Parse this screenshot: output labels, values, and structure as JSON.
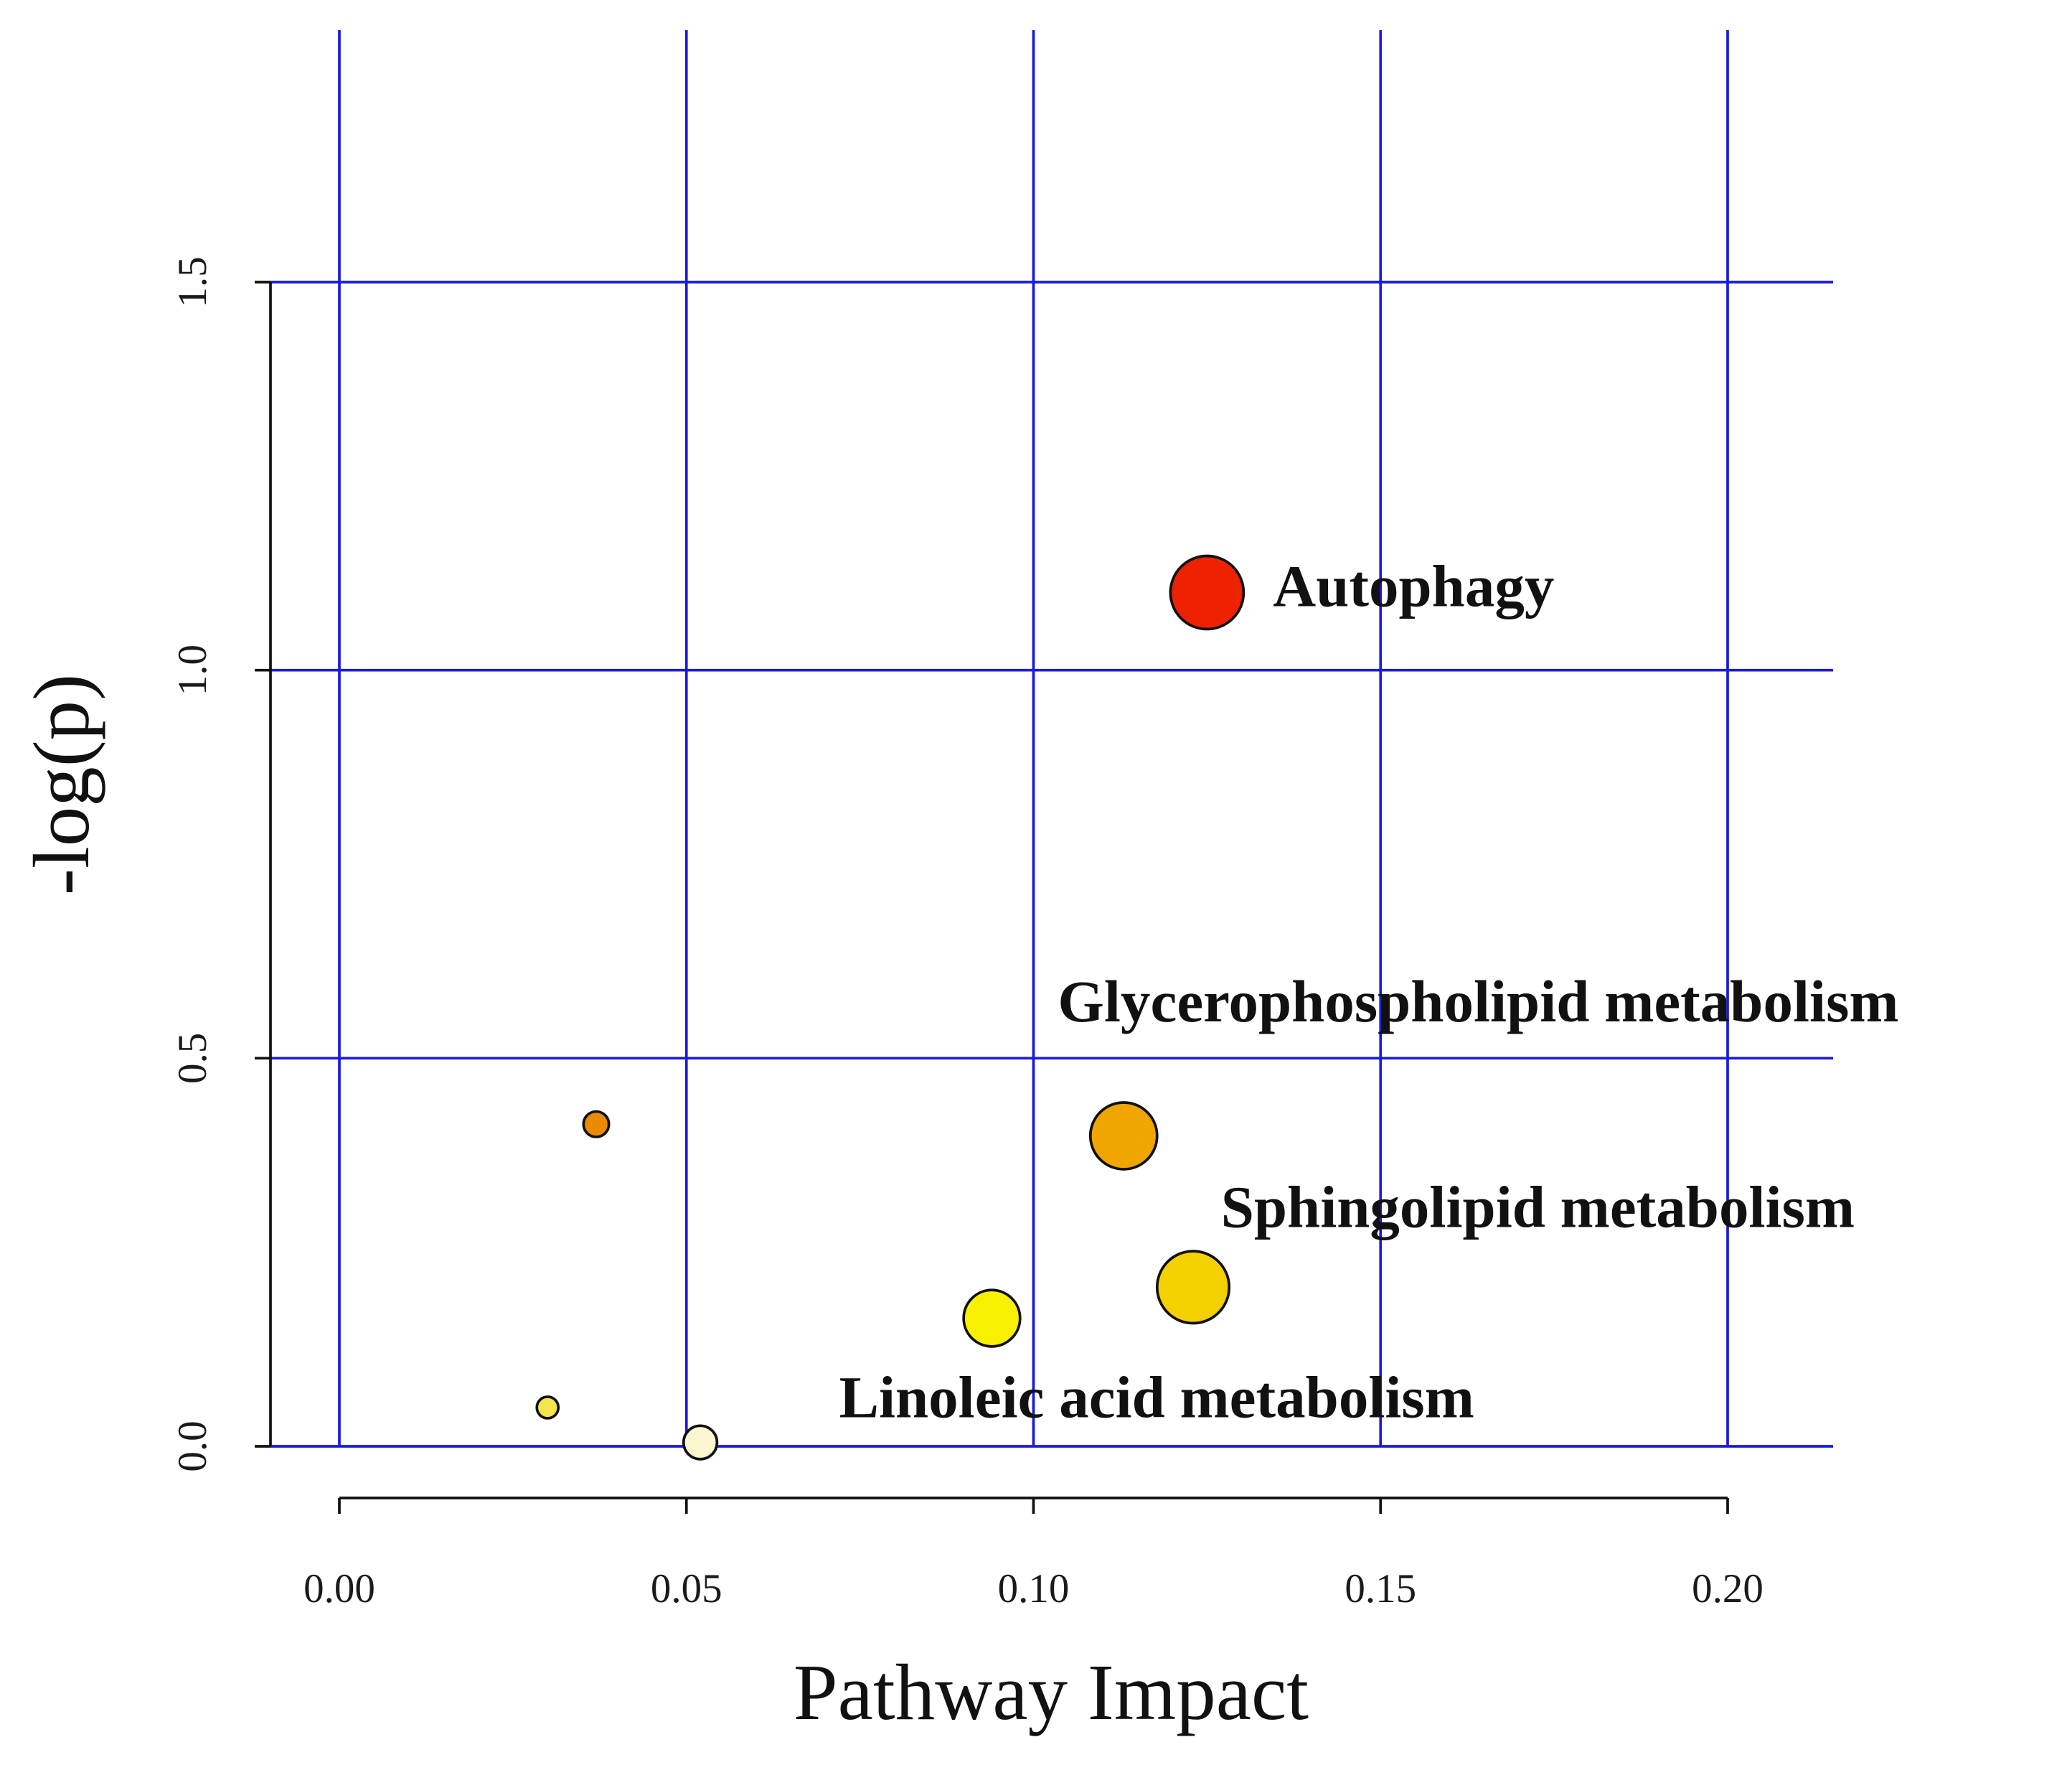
{
  "chart_data": {
    "type": "scatter",
    "title": "",
    "xlabel": "Pathway Impact",
    "ylabel": "-log(p)",
    "xlim": [
      0.0,
      0.2
    ],
    "ylim": [
      0.0,
      1.5
    ],
    "x_ticks": [
      "0.00",
      "0.05",
      "0.10",
      "0.15",
      "0.20"
    ],
    "y_ticks": [
      "0.0",
      "0.5",
      "1.0",
      "1.5"
    ],
    "grid": true,
    "grid_color": "#1a1adf",
    "size_meaning": "pathway impact",
    "color_meaning": "-log(p), yellow (low) to red (high)",
    "points": [
      {
        "label": "Autophagy",
        "x": 0.125,
        "y": 1.1,
        "color": "#ee2200",
        "size": 0.125
      },
      {
        "label": "Glycerophospholipid metabolism",
        "x": 0.113,
        "y": 0.4,
        "color": "#f0a500",
        "size": 0.113
      },
      {
        "label": "Sphingolipid metabolism",
        "x": 0.123,
        "y": 0.205,
        "color": "#f5d000",
        "size": 0.123
      },
      {
        "label": "Linoleic acid metabolism",
        "x": 0.094,
        "y": 0.165,
        "color": "#f8f000",
        "size": 0.094
      },
      {
        "label": "",
        "x": 0.037,
        "y": 0.415,
        "color": "#ea8a00",
        "size": 0.037
      },
      {
        "label": "",
        "x": 0.03,
        "y": 0.05,
        "color": "#f2e44a",
        "size": 0.03
      },
      {
        "label": "",
        "x": 0.052,
        "y": 0.005,
        "color": "#fbf6cf",
        "size": 0.052
      }
    ],
    "annotations": [
      {
        "text": "Autophagy",
        "x": 0.1345,
        "y": 1.1
      },
      {
        "text": "Glycerophospholipid metabolism",
        "x": 0.1035,
        "y": 0.565
      },
      {
        "text": "Sphingolipid metabolism",
        "x": 0.127,
        "y": 0.3
      },
      {
        "text": "Linoleic acid metabolism",
        "x": 0.072,
        "y": 0.055
      }
    ]
  }
}
